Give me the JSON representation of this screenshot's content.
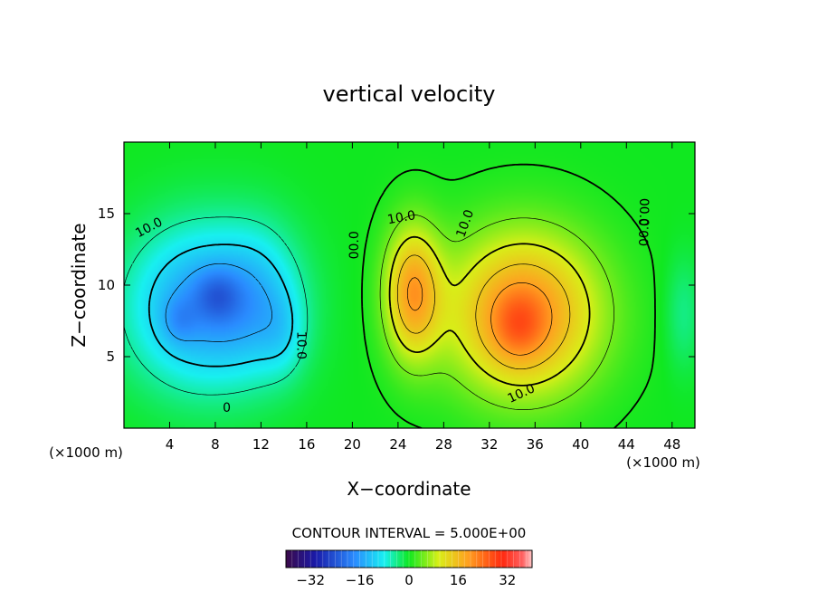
{
  "chart_data": {
    "type": "heatmap",
    "title": "vertical velocity",
    "xlabel": "X−coordinate",
    "ylabel": "Z−coordinate",
    "x_unit_label_left": "(×1000 m)",
    "x_unit_label_right": "(×1000 m)",
    "xlim": [
      0,
      50
    ],
    "ylim": [
      0,
      20
    ],
    "x_ticks": [
      4,
      8,
      12,
      16,
      20,
      24,
      28,
      32,
      36,
      40,
      44,
      48
    ],
    "y_ticks": [
      5,
      10,
      15
    ],
    "contour_interval_text": "CONTOUR INTERVAL = 5.000E+00",
    "colorbar": {
      "range": [
        -40,
        40
      ],
      "ticks": [
        -32,
        -16,
        0,
        16,
        32
      ],
      "tick_labels": [
        "−32",
        "−16",
        "0",
        "16",
        "32"
      ]
    },
    "contour_labels": [
      {
        "text": "10.0",
        "x": 2.2,
        "y": 14.0,
        "angle": -28
      },
      {
        "text": "10.0",
        "x": 15.5,
        "y": 5.8,
        "angle": 90
      },
      {
        "text": "00.0",
        "x": 20.2,
        "y": 12.8,
        "angle": -90
      },
      {
        "text": "10.0",
        "x": 24.3,
        "y": 14.7,
        "angle": -10
      },
      {
        "text": "10.0",
        "x": 29.9,
        "y": 14.3,
        "angle": -70
      },
      {
        "text": "10.0",
        "x": 34.8,
        "y": 2.4,
        "angle": -25
      },
      {
        "text": "00.0",
        "x": 45.5,
        "y": 15.1,
        "angle": 90
      },
      {
        "text": "00.0",
        "x": 45.6,
        "y": 13.7,
        "angle": -90
      },
      {
        "text": "0",
        "x": 9.0,
        "y": 1.4,
        "angle": 0
      }
    ],
    "field_blobs": [
      {
        "x": 7,
        "y": 8.5,
        "rx": 6.5,
        "ry": 5.5,
        "amp": -17
      },
      {
        "x": 12,
        "y": 9,
        "rx": 3.5,
        "ry": 5,
        "amp": -6
      },
      {
        "x": 8.2,
        "y": 9.3,
        "rx": 2,
        "ry": 1.8,
        "amp": -6
      },
      {
        "x": 4.8,
        "y": 7.5,
        "rx": 1.5,
        "ry": 1.6,
        "amp": -4
      },
      {
        "x": 14,
        "y": 6.5,
        "rx": 2,
        "ry": 3,
        "amp": -4
      },
      {
        "x": 25.3,
        "y": 9.5,
        "rx": 2.4,
        "ry": 4.5,
        "amp": 19
      },
      {
        "x": 35,
        "y": 8,
        "rx": 6.5,
        "ry": 5.5,
        "amp": 22
      },
      {
        "x": 34.5,
        "y": 7,
        "rx": 2.3,
        "ry": 2.5,
        "amp": 6
      },
      {
        "x": 49,
        "y": 8,
        "rx": 1.6,
        "ry": 4,
        "amp": -4
      }
    ],
    "grid": false
  }
}
